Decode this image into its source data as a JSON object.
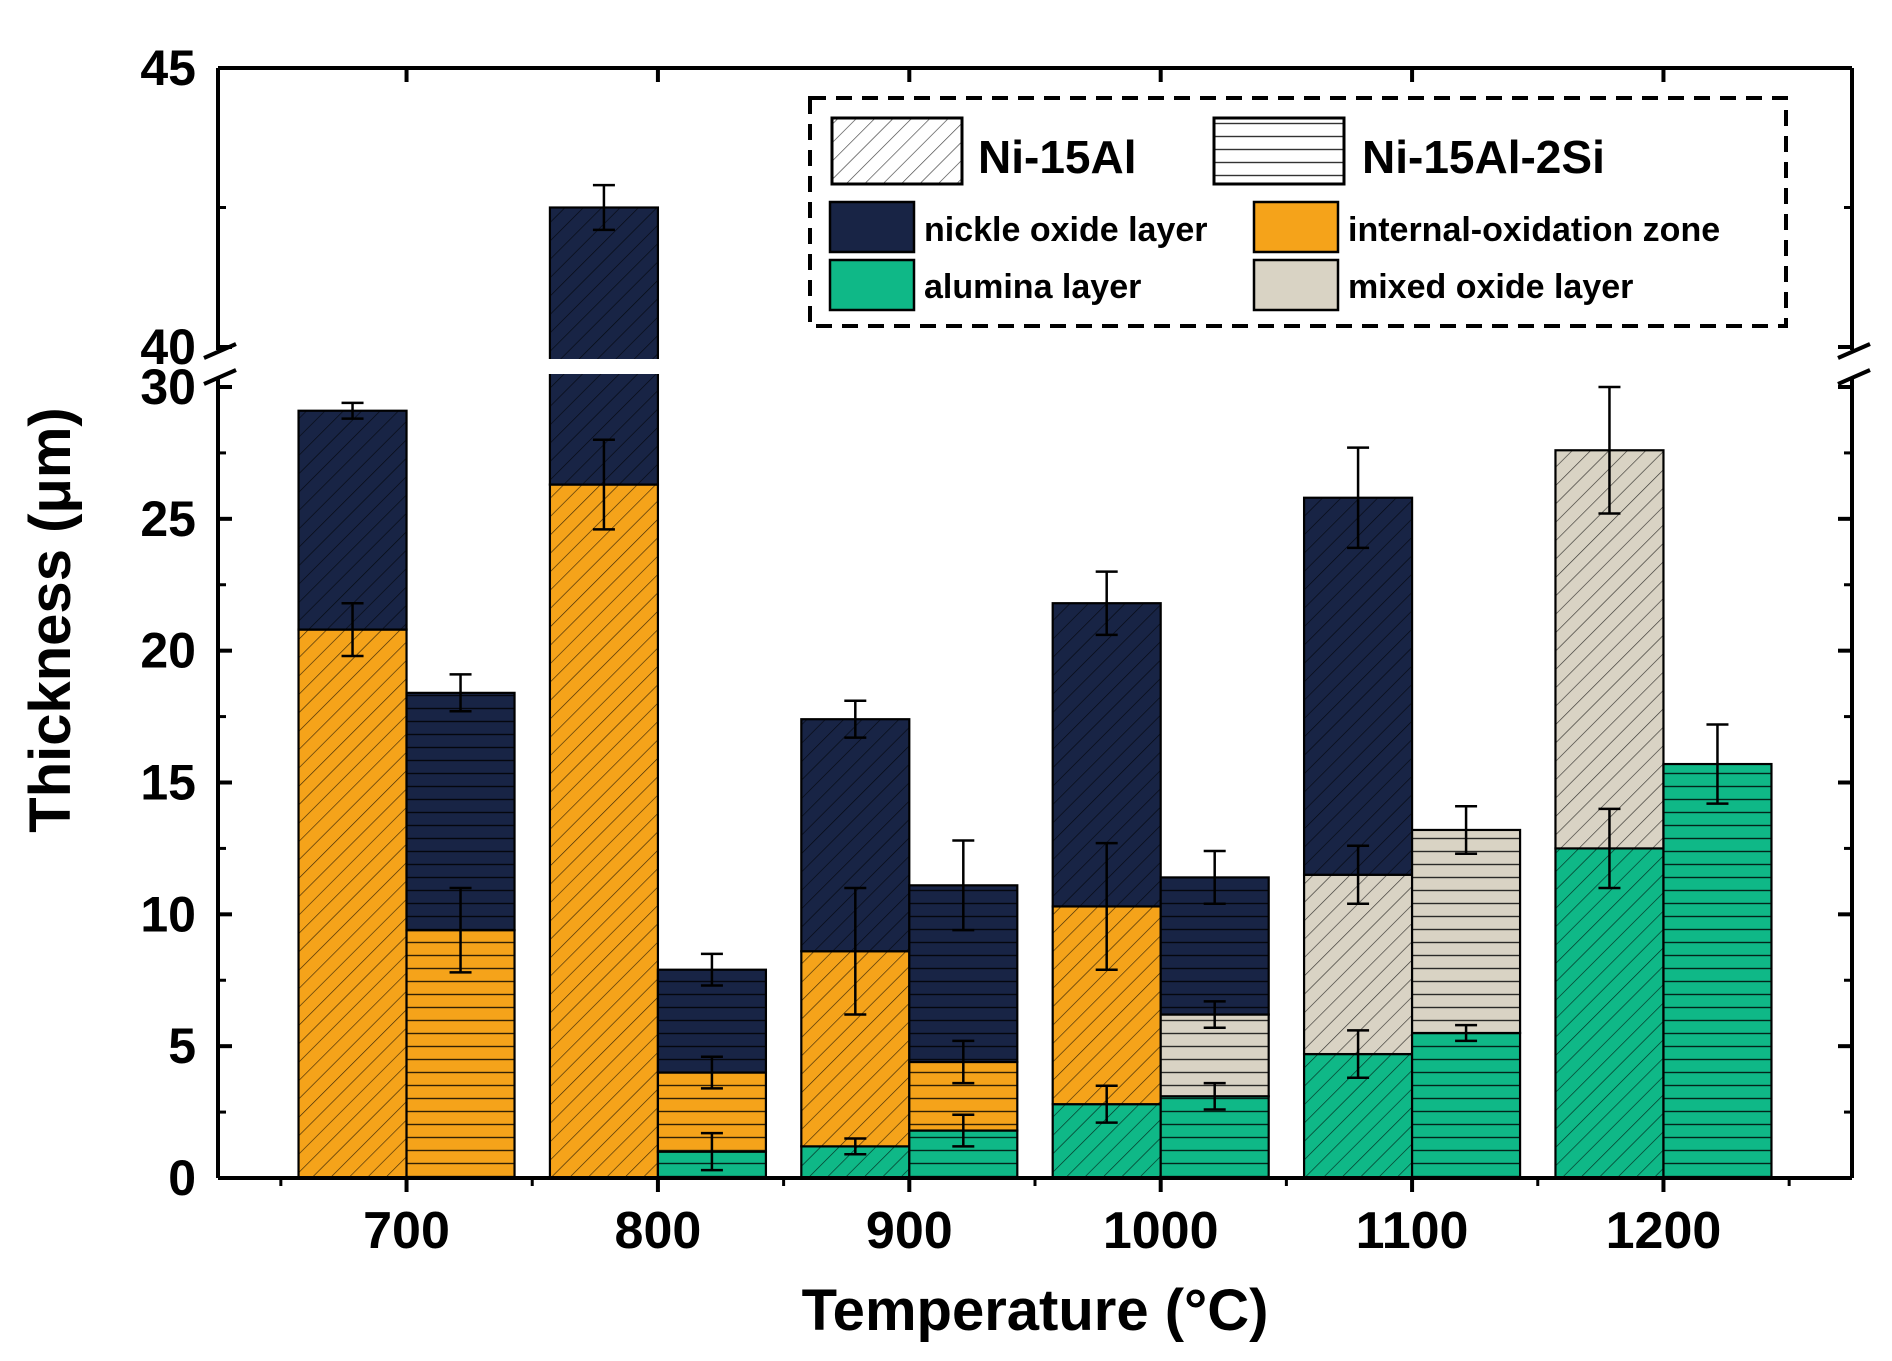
{
  "chart_data": {
    "type": "bar",
    "subtype": "stacked-grouped",
    "xlabel": "Temperature (°C)",
    "ylabel": "Thickness (μm)",
    "categories": [
      "700",
      "800",
      "900",
      "1000",
      "1100",
      "1200"
    ],
    "ylim_lower": [
      0,
      30
    ],
    "ylim_upper": [
      40,
      45
    ],
    "yticks_lower": [
      "0",
      "5",
      "10",
      "15",
      "20",
      "25",
      "30"
    ],
    "yticks_upper": [
      "40",
      "45"
    ],
    "alloys": [
      "Ni-15Al",
      "Ni-15Al-2Si"
    ],
    "layer_labels": {
      "alumina": "alumina layer",
      "internal": "internal-oxidation zone",
      "mixed": "mixed oxide layer",
      "nickel": "nickle oxide layer"
    },
    "colors": {
      "alumina": "#0fb887",
      "internal": "#f5a31a",
      "mixed": "#d9d3c4",
      "nickel": "#182445"
    },
    "bars": [
      {
        "category": "700",
        "alloy": "Ni-15Al",
        "segments": [
          {
            "layer": "internal",
            "value": 20.8,
            "error": 1.0
          },
          {
            "layer": "nickel",
            "value": 8.3,
            "error": 0.3
          }
        ]
      },
      {
        "category": "700",
        "alloy": "Ni-15Al-2Si",
        "segments": [
          {
            "layer": "internal",
            "value": 9.4,
            "error": 1.6
          },
          {
            "layer": "nickel",
            "value": 9.0,
            "error": 0.7
          }
        ]
      },
      {
        "category": "800",
        "alloy": "Ni-15Al",
        "segments": [
          {
            "layer": "internal",
            "value": 26.3,
            "error": 1.7
          },
          {
            "layer": "nickel",
            "value": 16.2,
            "error": 0.4
          }
        ]
      },
      {
        "category": "800",
        "alloy": "Ni-15Al-2Si",
        "segments": [
          {
            "layer": "alumina",
            "value": 1.0,
            "error": 0.7
          },
          {
            "layer": "internal",
            "value": 3.0,
            "error": 0.6
          },
          {
            "layer": "nickel",
            "value": 3.9,
            "error": 0.6
          }
        ]
      },
      {
        "category": "900",
        "alloy": "Ni-15Al",
        "segments": [
          {
            "layer": "alumina",
            "value": 1.2,
            "error": 0.3
          },
          {
            "layer": "internal",
            "value": 7.4,
            "error": 2.4
          },
          {
            "layer": "nickel",
            "value": 8.8,
            "error": 0.7
          }
        ]
      },
      {
        "category": "900",
        "alloy": "Ni-15Al-2Si",
        "segments": [
          {
            "layer": "alumina",
            "value": 1.8,
            "error": 0.6
          },
          {
            "layer": "internal",
            "value": 2.6,
            "error": 0.8
          },
          {
            "layer": "nickel",
            "value": 6.7,
            "error": 1.7
          }
        ]
      },
      {
        "category": "1000",
        "alloy": "Ni-15Al",
        "segments": [
          {
            "layer": "alumina",
            "value": 2.8,
            "error": 0.7
          },
          {
            "layer": "internal",
            "value": 7.5,
            "error": 2.4
          },
          {
            "layer": "nickel",
            "value": 11.5,
            "error": 1.2
          }
        ]
      },
      {
        "category": "1000",
        "alloy": "Ni-15Al-2Si",
        "segments": [
          {
            "layer": "alumina",
            "value": 3.1,
            "error": 0.5
          },
          {
            "layer": "mixed",
            "value": 3.1,
            "error": 0.5
          },
          {
            "layer": "nickel",
            "value": 5.2,
            "error": 1.0
          }
        ]
      },
      {
        "category": "1100",
        "alloy": "Ni-15Al",
        "segments": [
          {
            "layer": "alumina",
            "value": 4.7,
            "error": 0.9
          },
          {
            "layer": "mixed",
            "value": 6.8,
            "error": 1.1
          },
          {
            "layer": "nickel",
            "value": 14.3,
            "error": 1.9
          }
        ]
      },
      {
        "category": "1100",
        "alloy": "Ni-15Al-2Si",
        "segments": [
          {
            "layer": "alumina",
            "value": 5.5,
            "error": 0.3
          },
          {
            "layer": "mixed",
            "value": 7.7,
            "error": 0.9
          }
        ]
      },
      {
        "category": "1200",
        "alloy": "Ni-15Al",
        "segments": [
          {
            "layer": "alumina",
            "value": 12.5,
            "error": 1.5
          },
          {
            "layer": "mixed",
            "value": 15.1,
            "error": 2.4
          }
        ]
      },
      {
        "category": "1200",
        "alloy": "Ni-15Al-2Si",
        "segments": [
          {
            "layer": "alumina",
            "value": 15.7,
            "error": 1.5
          }
        ]
      }
    ]
  }
}
